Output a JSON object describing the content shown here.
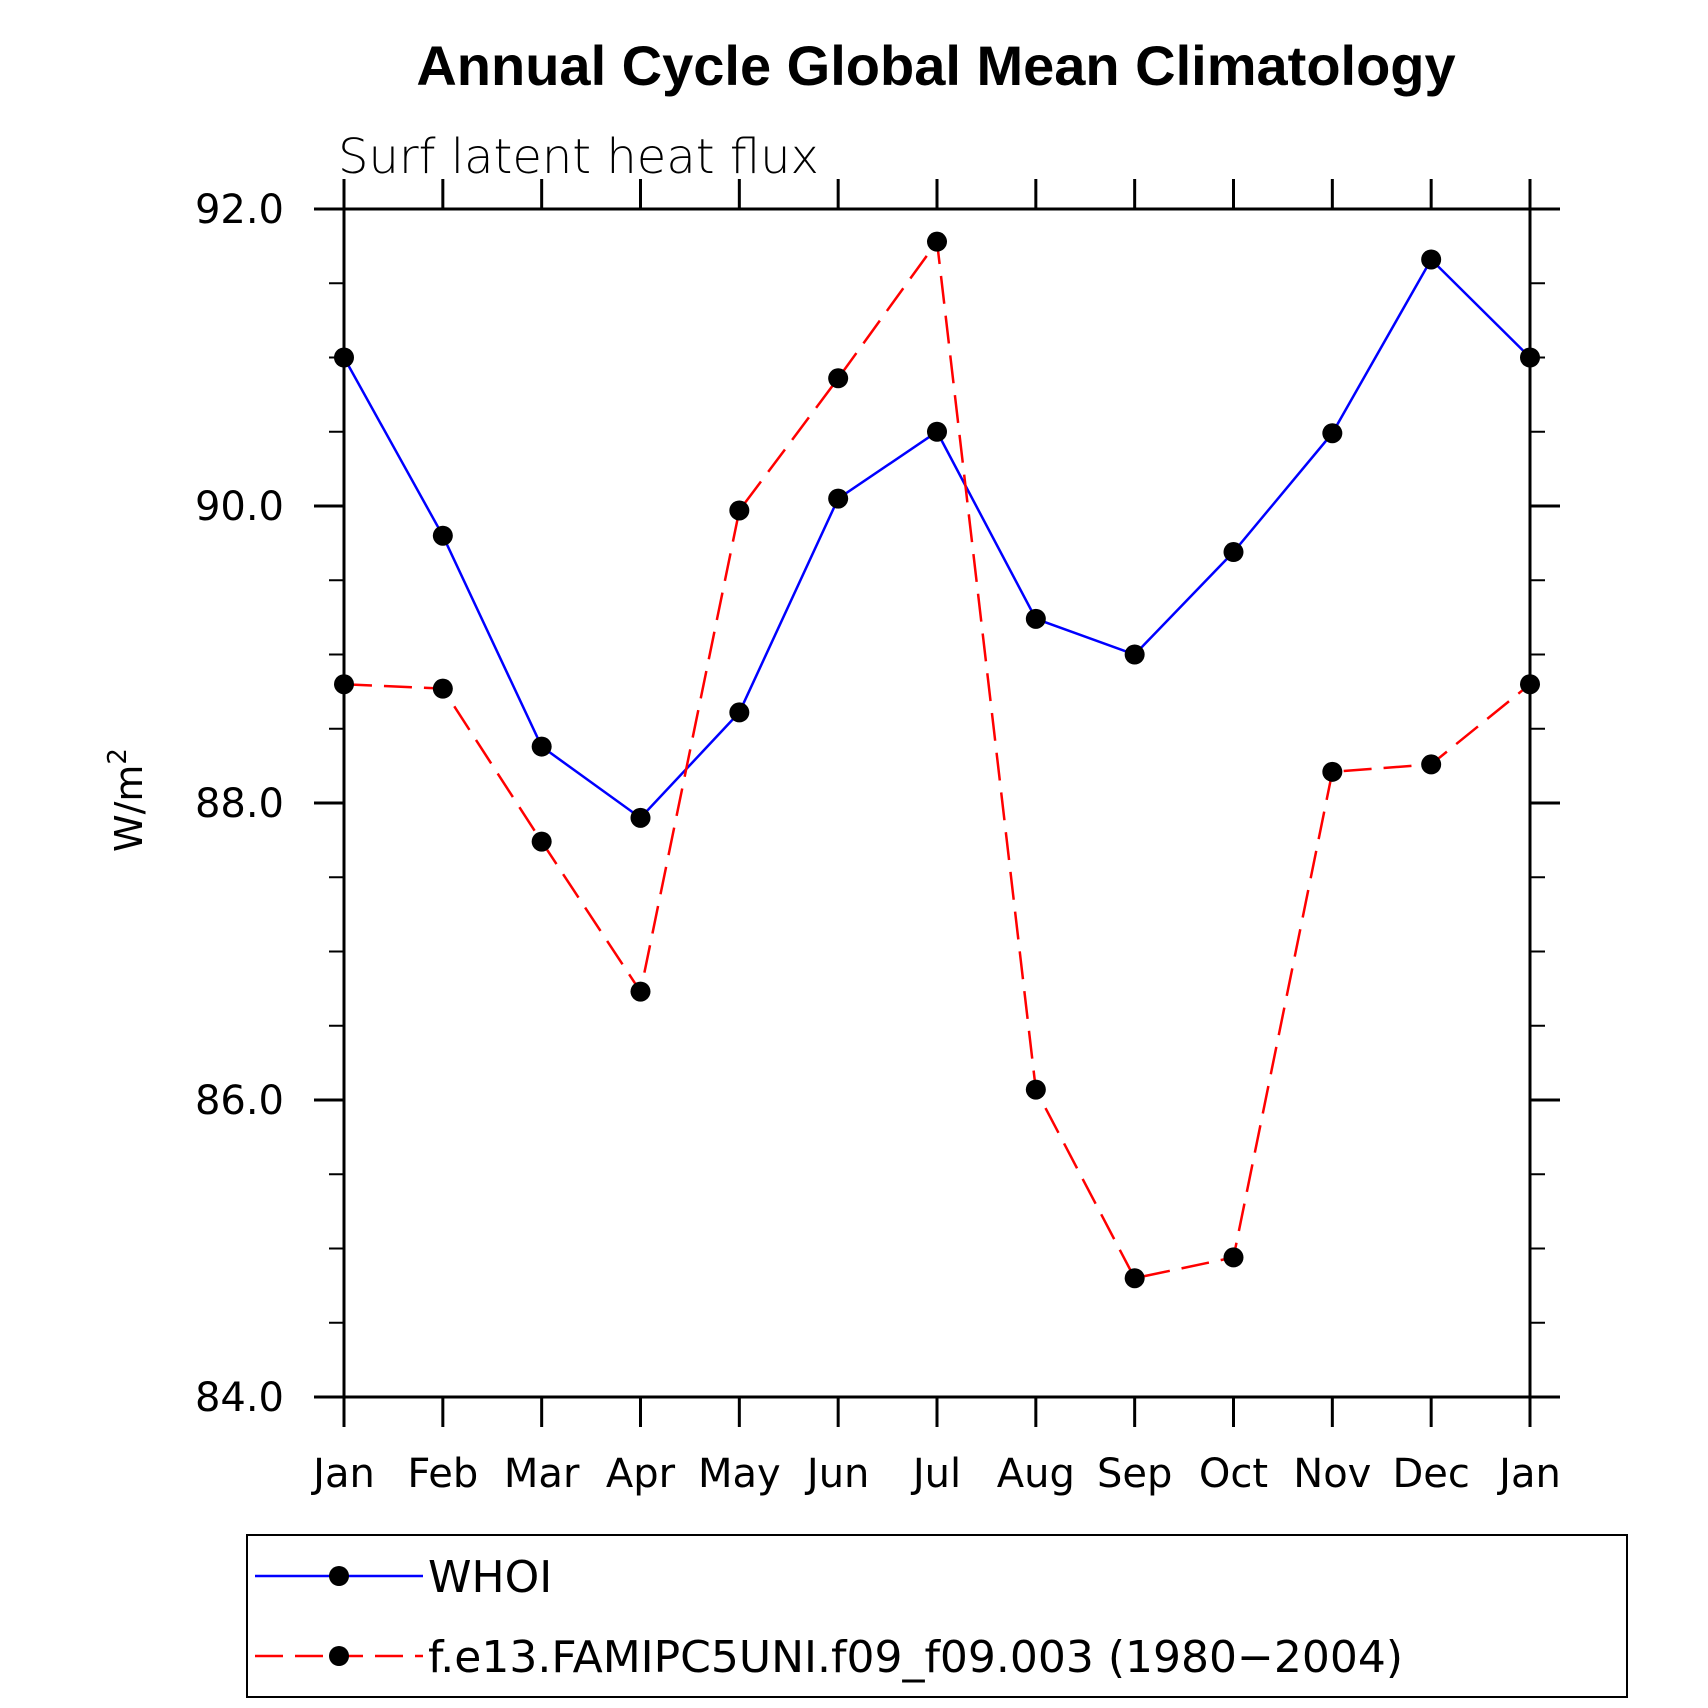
{
  "chart_data": {
    "type": "line",
    "title": "Annual Cycle Global Mean Climatology",
    "subtitle": "Surf latent heat flux",
    "ylabel_base": "W/m",
    "ylabel_sup": "2",
    "xlabel": "",
    "categories": [
      "Jan",
      "Feb",
      "Mar",
      "Apr",
      "May",
      "Jun",
      "Jul",
      "Aug",
      "Sep",
      "Oct",
      "Nov",
      "Dec",
      "Jan"
    ],
    "ylim": [
      84.0,
      92.0
    ],
    "yticks": [
      "84.0",
      "86.0",
      "88.0",
      "90.0",
      "92.0"
    ],
    "grid": false,
    "legend_position": "bottom",
    "series": [
      {
        "name": "WHOI",
        "color": "#0000ff",
        "dash": "solid",
        "values": [
          91.0,
          89.8,
          88.38,
          87.9,
          88.61,
          90.05,
          90.5,
          89.24,
          89.0,
          89.69,
          90.49,
          91.66,
          91.0
        ]
      },
      {
        "name": "f.e13.FAMIPC5UNI.f09_f09.003 (1980−2004)",
        "color": "#ff0000",
        "dash": "dashed",
        "values": [
          88.8,
          88.77,
          87.74,
          86.73,
          89.97,
          90.86,
          91.78,
          86.07,
          84.8,
          84.94,
          88.21,
          88.26,
          88.8
        ]
      }
    ]
  }
}
